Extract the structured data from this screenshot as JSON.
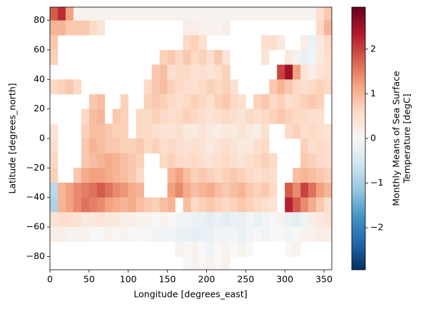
{
  "chart_data": {
    "type": "heatmap",
    "xlabel": "Longitude [degrees_east]",
    "ylabel": "Latitude [degrees_north]",
    "colorbar_label": [
      "Monthly Means of Sea Surface",
      "Temperature [degC]"
    ],
    "colormap": "RdBu_r",
    "xlim": [
      0,
      360
    ],
    "ylim": [
      -89,
      89
    ],
    "xticks": [
      0,
      50,
      100,
      150,
      200,
      250,
      300,
      350
    ],
    "yticks": [
      {
        "value": -80,
        "label": "−80"
      },
      {
        "value": -60,
        "label": "−60"
      },
      {
        "value": -40,
        "label": "−40"
      },
      {
        "value": -20,
        "label": "−20"
      },
      0,
      20,
      40,
      60,
      80
    ],
    "clim": [
      -2.94,
      2.94
    ],
    "cticks": [
      {
        "value": -2,
        "label": "−2"
      },
      {
        "value": -1,
        "label": "−1"
      },
      0,
      1,
      2
    ],
    "x": [
      5,
      15,
      25,
      35,
      45,
      55,
      65,
      75,
      85,
      95,
      105,
      115,
      125,
      135,
      145,
      155,
      165,
      175,
      185,
      195,
      205,
      215,
      225,
      235,
      245,
      255,
      265,
      275,
      285,
      295,
      305,
      315,
      325,
      335,
      345,
      355
    ],
    "y": [
      85,
      75,
      65,
      55,
      45,
      35,
      25,
      15,
      5,
      -5,
      -15,
      -25,
      -35,
      -45,
      -55,
      -65,
      -75,
      -85
    ],
    "z": [
      [
        1.8,
        2.2,
        1.2,
        0.1,
        0.1,
        0.1,
        0.1,
        0.1,
        0.1,
        0.1,
        0.1,
        0.1,
        0.1,
        0.1,
        0.1,
        0.1,
        0.1,
        0.1,
        0.1,
        0.1,
        0.1,
        0.1,
        0.1,
        0.1,
        0.1,
        0.1,
        0.1,
        0.1,
        0.1,
        0.1,
        0.1,
        0.1,
        0.1,
        0.1,
        0.5,
        0.8
      ],
      [
        1.0,
        1.0,
        0.8,
        0.8,
        0.8,
        0.6,
        0.4,
        null,
        null,
        null,
        null,
        null,
        null,
        null,
        null,
        null,
        null,
        0.2,
        0.2,
        0.1,
        0.1,
        0.1,
        0.2,
        null,
        null,
        null,
        null,
        null,
        null,
        null,
        null,
        null,
        null,
        null,
        0.6,
        1.0
      ],
      [
        0.8,
        null,
        null,
        null,
        null,
        null,
        null,
        null,
        null,
        null,
        null,
        null,
        null,
        null,
        null,
        null,
        null,
        0.6,
        0.7,
        0.5,
        null,
        null,
        null,
        null,
        null,
        null,
        null,
        0.5,
        0.5,
        0.3,
        null,
        null,
        0.2,
        -0.2,
        0.3,
        0.6
      ],
      [
        0.7,
        null,
        null,
        null,
        null,
        null,
        null,
        null,
        null,
        null,
        null,
        null,
        null,
        null,
        0.7,
        0.8,
        0.6,
        0.8,
        0.6,
        0.7,
        0.5,
        0.8,
        0.4,
        null,
        null,
        null,
        null,
        0.4,
        null,
        null,
        0.3,
        0.1,
        -0.2,
        -0.1,
        0.3,
        0.5
      ],
      [
        null,
        null,
        null,
        null,
        null,
        null,
        null,
        null,
        null,
        null,
        null,
        null,
        null,
        0.8,
        0.9,
        0.5,
        0.6,
        0.6,
        0.4,
        0.5,
        0.4,
        0.5,
        0.7,
        null,
        null,
        null,
        null,
        null,
        null,
        2.0,
        2.5,
        1.2,
        0.4,
        0.2,
        0.4,
        0.5
      ],
      [
        0.6,
        0.7,
        0.8,
        0.6,
        null,
        null,
        null,
        null,
        null,
        null,
        null,
        null,
        0.6,
        0.8,
        0.9,
        0.7,
        0.6,
        0.5,
        0.5,
        0.6,
        0.7,
        0.6,
        0.7,
        0.5,
        null,
        null,
        null,
        null,
        0.8,
        1.0,
        0.8,
        0.6,
        0.5,
        0.6,
        0.7,
        0.6
      ],
      [
        null,
        null,
        null,
        null,
        null,
        0.8,
        0.9,
        null,
        null,
        0.7,
        null,
        null,
        0.7,
        0.8,
        0.7,
        0.6,
        0.5,
        0.6,
        0.7,
        0.6,
        0.5,
        0.7,
        0.8,
        0.6,
        0.5,
        null,
        0.7,
        0.8,
        0.6,
        0.7,
        0.5,
        0.6,
        0.7,
        0.8,
        0.7,
        null
      ],
      [
        null,
        null,
        null,
        null,
        0.6,
        0.9,
        1.0,
        null,
        0.8,
        0.7,
        null,
        0.6,
        0.6,
        0.7,
        0.6,
        0.5,
        0.6,
        0.7,
        0.6,
        0.5,
        0.4,
        0.5,
        0.6,
        0.5,
        0.4,
        0.6,
        0.5,
        0.6,
        0.7,
        0.8,
        0.7,
        0.6,
        0.6,
        0.5,
        0.5,
        null
      ],
      [
        0.4,
        null,
        null,
        null,
        0.7,
        0.9,
        0.9,
        0.8,
        0.7,
        0.7,
        null,
        0.6,
        0.6,
        0.5,
        0.4,
        0.4,
        0.5,
        0.3,
        0.3,
        0.4,
        0.3,
        0.2,
        0.3,
        0.3,
        0.4,
        0.3,
        0.2,
        0.5,
        null,
        null,
        0.6,
        0.7,
        0.5,
        0.6,
        0.5,
        0.4
      ],
      [
        0.5,
        null,
        null,
        null,
        0.8,
        1.0,
        0.9,
        0.8,
        0.8,
        0.7,
        0.7,
        0.8,
        0.6,
        0.7,
        0.5,
        0.6,
        0.5,
        0.4,
        0.5,
        0.4,
        0.3,
        0.4,
        0.5,
        0.4,
        0.3,
        0.3,
        0.5,
        0.6,
        null,
        null,
        null,
        null,
        0.7,
        0.5,
        0.6,
        0.5
      ],
      [
        0.6,
        null,
        null,
        null,
        0.8,
        0.9,
        1.0,
        1.1,
        1.0,
        0.9,
        0.8,
        0.7,
        null,
        null,
        0.6,
        0.7,
        0.6,
        0.5,
        0.6,
        0.5,
        0.4,
        0.5,
        0.6,
        0.5,
        0.4,
        0.5,
        0.6,
        0.7,
        0.6,
        null,
        null,
        null,
        0.8,
        0.7,
        0.6,
        0.5
      ],
      [
        0.7,
        null,
        null,
        0.8,
        1.1,
        1.2,
        1.2,
        1.1,
        1.0,
        0.9,
        0.8,
        0.6,
        null,
        null,
        null,
        1.0,
        1.2,
        0.9,
        0.7,
        0.8,
        0.7,
        0.6,
        0.7,
        0.8,
        0.7,
        0.6,
        0.5,
        0.6,
        0.5,
        null,
        null,
        0.9,
        1.0,
        0.9,
        0.8,
        0.7
      ],
      [
        -0.8,
        1.0,
        1.2,
        1.4,
        1.5,
        1.6,
        1.8,
        1.6,
        1.4,
        1.3,
        1.1,
        1.0,
        null,
        null,
        null,
        1.2,
        1.4,
        1.1,
        0.9,
        1.0,
        1.1,
        0.9,
        0.8,
        0.9,
        1.0,
        0.8,
        0.7,
        0.8,
        0.6,
        null,
        1.8,
        1.4,
        2.0,
        1.6,
        1.2,
        1.0
      ],
      [
        -0.9,
        1.0,
        1.2,
        1.4,
        1.6,
        1.5,
        1.4,
        1.2,
        1.1,
        1.0,
        1.1,
        0.9,
        0.8,
        0.7,
        0.9,
        1.0,
        null,
        0.9,
        0.6,
        0.7,
        0.8,
        0.7,
        0.6,
        0.7,
        0.8,
        0.7,
        0.6,
        0.5,
        0.4,
        null,
        2.3,
        1.8,
        1.4,
        1.1,
        0.8,
        0.5
      ],
      [
        0.4,
        0.5,
        0.5,
        0.4,
        0.3,
        0.3,
        0.4,
        0.3,
        0.3,
        0.2,
        0.2,
        0.1,
        0.1,
        0,
        0.1,
        0,
        -0.1,
        -0.1,
        -0.2,
        -0.2,
        -0.3,
        -0.2,
        -0.3,
        -0.2,
        -0.2,
        -0.1,
        -0.2,
        -0.1,
        0,
        0.1,
        -0.2,
        -0.3,
        -0.1,
        0.2,
        0.3,
        0.4
      ],
      [
        0.2,
        0.2,
        0.1,
        0.1,
        0.1,
        0,
        0,
        0.1,
        0,
        0.1,
        0,
        0,
        0,
        -0.1,
        -0.1,
        -0.1,
        -0.2,
        -0.2,
        -0.3,
        -0.2,
        -0.2,
        -0.1,
        -0.1,
        -0.1,
        -0.2,
        -0.1,
        0,
        -0.1,
        0,
        0,
        -0.1,
        0,
        0.1,
        0.1,
        0.2,
        0.2
      ],
      [
        null,
        null,
        null,
        null,
        null,
        null,
        null,
        null,
        null,
        null,
        null,
        null,
        null,
        null,
        null,
        null,
        0.1,
        0,
        0.1,
        0,
        -0.1,
        0,
        0.1,
        0,
        0.1,
        0,
        null,
        null,
        null,
        null,
        0,
        0.1,
        null,
        null,
        null,
        null
      ],
      [
        null,
        null,
        null,
        null,
        null,
        null,
        null,
        null,
        null,
        null,
        null,
        null,
        null,
        null,
        null,
        null,
        null,
        0,
        0.1,
        0,
        0.1,
        0,
        0.1,
        null,
        null,
        null,
        null,
        null,
        null,
        null,
        null,
        null,
        null,
        null,
        null,
        null
      ]
    ]
  }
}
